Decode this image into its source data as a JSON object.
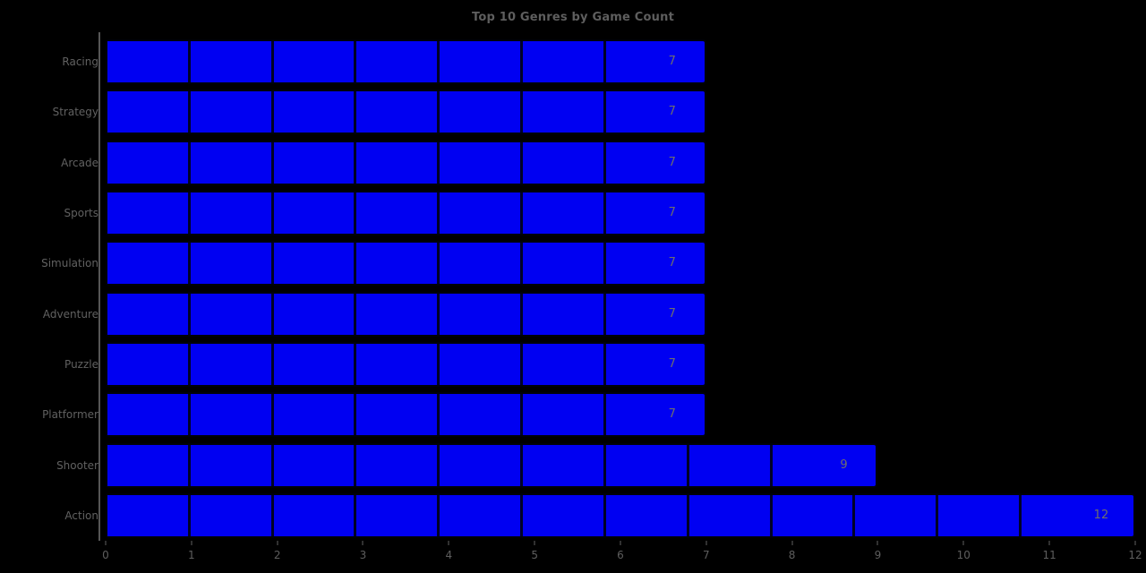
{
  "title": "Top 10 Genres by Game Count",
  "colors": {
    "background": "#000000",
    "bar_fill": "#0000f2",
    "bar_edge": "#000208",
    "segment_line": "#00020a",
    "title_text": "#5e5e5e",
    "category_text": "#616161",
    "value_text": "#6e6e6e",
    "tick_text": "#5e5e5e",
    "spine": "#565656"
  },
  "chart_data": {
    "type": "bar",
    "orientation": "horizontal",
    "title": "Top 10 Genres by Game Count",
    "xlabel": "",
    "ylabel": "",
    "categories": [
      "Racing",
      "Strategy",
      "Arcade",
      "Sports",
      "Simulation",
      "Adventure",
      "Puzzle",
      "Platformer",
      "Shooter",
      "Action"
    ],
    "values": [
      7,
      7,
      7,
      7,
      7,
      7,
      7,
      7,
      9,
      12
    ],
    "value_labels": [
      "7",
      "7",
      "7",
      "7",
      "7",
      "7",
      "7",
      "7",
      "9",
      "12"
    ],
    "xlim": [
      0,
      12
    ],
    "x_ticks": [
      0,
      1,
      2,
      3,
      4,
      5,
      6,
      7,
      8,
      9,
      10,
      11,
      12
    ],
    "grid": "unit separators inside bars",
    "legend": "none",
    "bar_color": "#0000f2",
    "background_color": "#000000"
  }
}
